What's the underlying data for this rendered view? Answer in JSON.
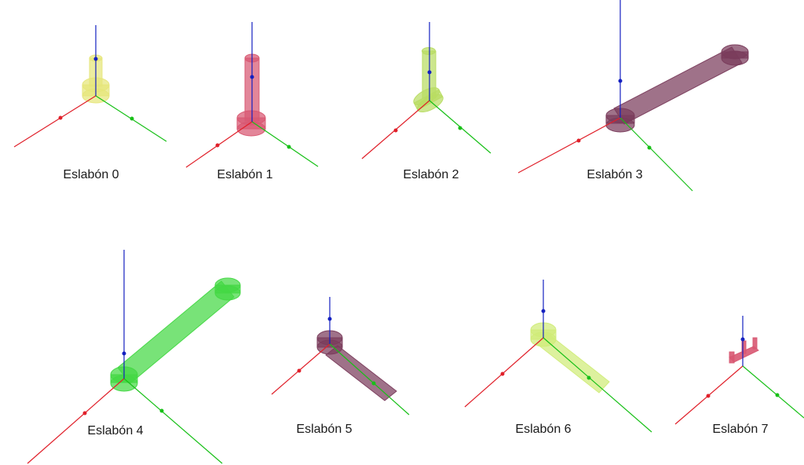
{
  "colors": {
    "axis_x": "#e0202a",
    "axis_y": "#18c018",
    "axis_z": "#1420c0",
    "link_0": "#e6e67a",
    "link_1": "#d85872",
    "link_2": "#b8dc62",
    "link_3": "#7a3c5c",
    "link_4": "#44d844",
    "link_5": "#7a3c5c",
    "link_6": "#d0ec78",
    "link_7": "#d85872"
  },
  "links": [
    {
      "label": "Eslabón 0"
    },
    {
      "label": "Eslabón 1"
    },
    {
      "label": "Eslabón 2"
    },
    {
      "label": "Eslabón 3"
    },
    {
      "label": "Eslabón 4"
    },
    {
      "label": "Eslabón 5"
    },
    {
      "label": "Eslabón 6"
    },
    {
      "label": "Eslabón 7"
    }
  ]
}
